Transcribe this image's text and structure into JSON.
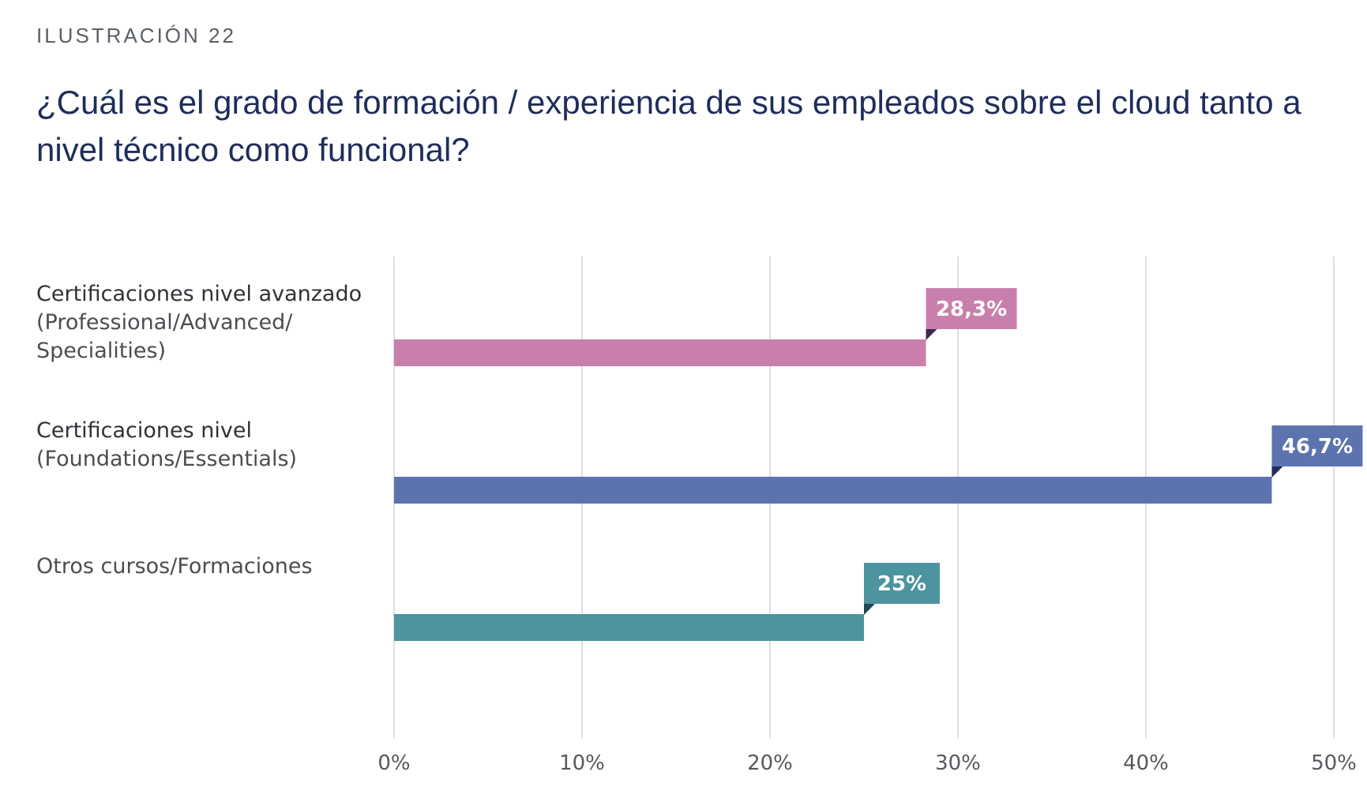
{
  "header": {
    "kicker": "ILUSTRACIÓN 22",
    "title": "¿Cuál es el grado de formación / experiencia de sus empleados sobre el cloud tanto a nivel técnico como funcional?"
  },
  "chart_data": {
    "type": "bar",
    "orientation": "horizontal",
    "categories": [
      {
        "main": "Certificaciones nivel avanzado",
        "sub": "(Professional/Advanced/ Specialities)"
      },
      {
        "main": "Certificaciones nivel",
        "sub": "(Foundations/Essentials)"
      },
      {
        "main": "",
        "sub": "Otros cursos/Formaciones"
      }
    ],
    "values": [
      28.3,
      46.7,
      25
    ],
    "value_labels": [
      "28,3%",
      "46,7%",
      "25%"
    ],
    "colors": [
      "#c97fac",
      "#5c73b0",
      "#4b94a0"
    ],
    "label_shadow_colors": [
      "#3b2a4a",
      "#1f2d5c",
      "#1f4a52"
    ],
    "xlim": [
      0,
      50
    ],
    "xticks": [
      0,
      10,
      20,
      30,
      40,
      50
    ],
    "xtick_labels": [
      "0%",
      "10%",
      "20%",
      "30%",
      "40%",
      "50%"
    ],
    "grid": true
  }
}
